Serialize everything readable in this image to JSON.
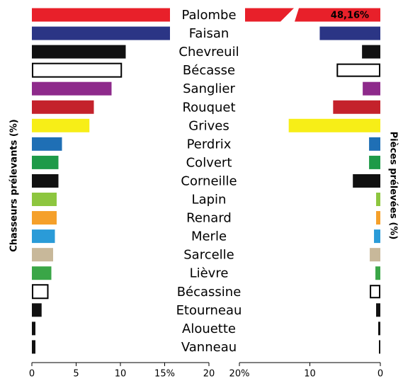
{
  "chart_data": {
    "type": "butterfly",
    "categories": [
      "Palombe",
      "Faisan",
      "Chevreuil",
      "Bécasse",
      "Sanglier",
      "Rouquet",
      "Grives",
      "Perdrix",
      "Colvert",
      "Corneille",
      "Lapin",
      "Renard",
      "Merle",
      "Sarcelle",
      "Lièvre",
      "Bécassine",
      "Etourneau",
      "Alouette",
      "Vanneau"
    ],
    "colors": [
      "#e8202a",
      "#2b3585",
      "#111111",
      "#ffffff",
      "#8e2a8b",
      "#c4222b",
      "#f7ee17",
      "#1f6fb5",
      "#1e9a48",
      "#111111",
      "#8dc63f",
      "#f5a02a",
      "#2a9bd8",
      "#c8b89a",
      "#3aa647",
      "#ffffff",
      "#111111",
      "#111111",
      "#111111"
    ],
    "left": {
      "label": "Chasseurs prélevants (%)",
      "values": [
        15.6,
        15.6,
        10.6,
        10.1,
        9.0,
        7.0,
        6.5,
        3.4,
        3.0,
        3.0,
        2.8,
        2.8,
        2.6,
        2.4,
        2.2,
        1.8,
        1.1,
        0.4,
        0.4
      ],
      "xlim": [
        0,
        20
      ],
      "xticks": [
        0,
        5,
        10,
        {
          "value": 15,
          "label": "15%"
        },
        20
      ]
    },
    "right": {
      "label": "Pièces prélevées (%)",
      "values": [
        48.16,
        8.6,
        2.6,
        6.1,
        2.5,
        6.7,
        13.0,
        1.6,
        1.6,
        3.9,
        0.6,
        0.6,
        0.9,
        1.5,
        0.7,
        1.4,
        0.6,
        0.3,
        0.2
      ],
      "value_labels": [
        "48,16%",
        null,
        null,
        null,
        null,
        null,
        null,
        null,
        null,
        null,
        null,
        null,
        null,
        null,
        null,
        null,
        null,
        null,
        null
      ],
      "xlim": [
        20,
        0
      ],
      "xticks": [
        {
          "value": 20,
          "label": "20%"
        },
        10,
        0
      ]
    }
  }
}
